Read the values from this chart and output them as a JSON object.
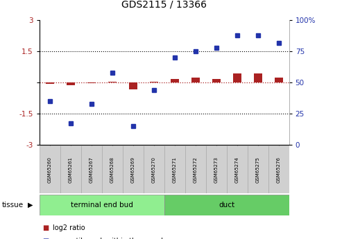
{
  "title": "GDS2115 / 13366",
  "samples": [
    "GSM65260",
    "GSM65261",
    "GSM65267",
    "GSM65268",
    "GSM65269",
    "GSM65270",
    "GSM65271",
    "GSM65272",
    "GSM65273",
    "GSM65274",
    "GSM65275",
    "GSM65276"
  ],
  "log2_ratio": [
    -0.05,
    -0.12,
    -0.04,
    0.02,
    -0.32,
    0.05,
    0.18,
    0.22,
    0.18,
    0.42,
    0.42,
    0.22
  ],
  "percentile_rank": [
    35,
    17,
    33,
    58,
    15,
    44,
    70,
    75,
    78,
    88,
    88,
    82
  ],
  "groups": [
    {
      "label": "terminal end bud",
      "start": 0,
      "end": 6,
      "color": "#90ee90"
    },
    {
      "label": "duct",
      "start": 6,
      "end": 12,
      "color": "#66cc66"
    }
  ],
  "group_label": "tissue",
  "log2_color": "#aa2222",
  "percentile_color": "#2233aa",
  "ylim_left": [
    -3,
    3
  ],
  "ylim_right": [
    0,
    100
  ],
  "yticks_left": [
    -3,
    -1.5,
    0,
    1.5,
    3
  ],
  "yticks_right": [
    0,
    25,
    50,
    75,
    100
  ],
  "hline_dotted": [
    1.5,
    -1.5
  ],
  "hline_red_dotted": 0,
  "bg_color": "#ffffff",
  "bar_width": 0.4,
  "marker_size": 4.5,
  "label_box_color": "#d0d0d0",
  "label_box_edge": "#aaaaaa"
}
